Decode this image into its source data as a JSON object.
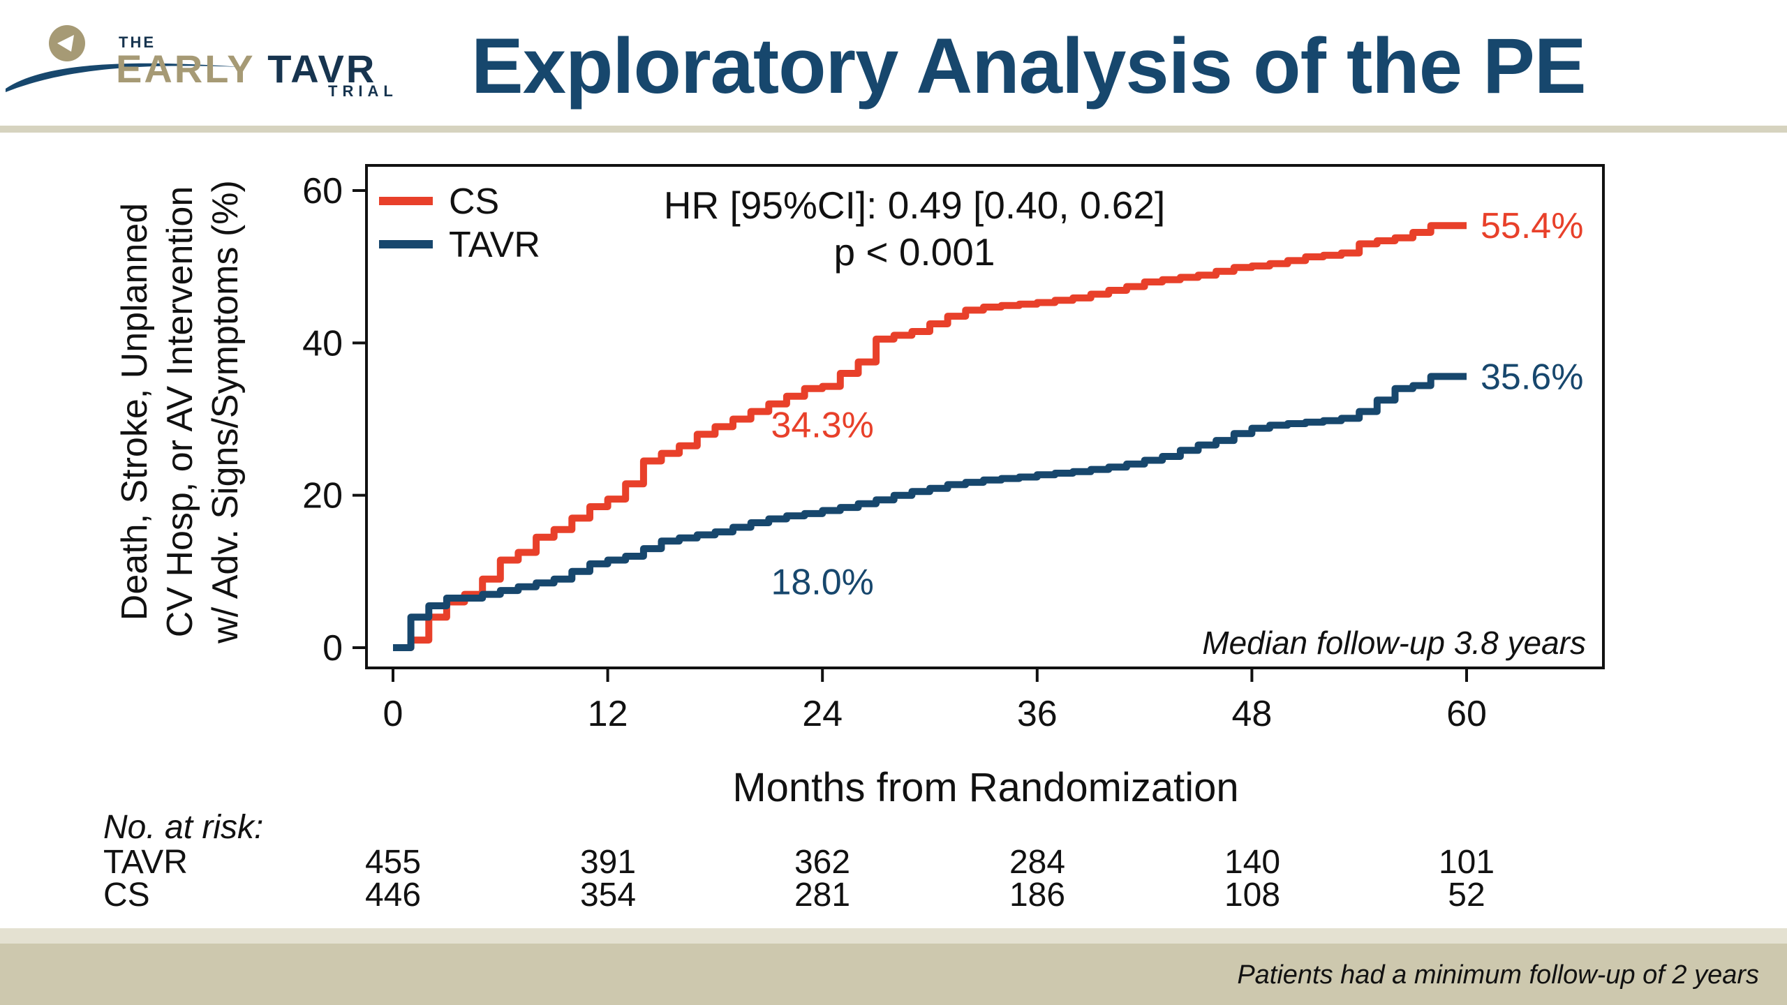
{
  "logo": {
    "the": "THE",
    "early": "EARLY",
    "tavr": "TAVR",
    "trial": "TRIAL"
  },
  "title": "Exploratory Analysis of the PE",
  "footnote": "Patients had a minimum follow-up of 2 years",
  "colors": {
    "cs": "#e8402a",
    "tavr": "#17476d",
    "title": "#17476d",
    "band": "#cdc8ae"
  },
  "chart_data": {
    "type": "line",
    "title": "",
    "xlabel": "Months from Randomization",
    "ylabel_lines": [
      "Death, Stroke, Unplanned",
      "CV Hosp, or AV Intervention",
      "w/ Adv. Signs/Symptoms (%)"
    ],
    "xlim": [
      0,
      60
    ],
    "ylim": [
      0,
      60
    ],
    "xticks": [
      0,
      12,
      24,
      36,
      48,
      60
    ],
    "yticks": [
      0,
      20,
      40,
      60
    ],
    "grid": false,
    "legend": {
      "placement": "top-left",
      "entries": [
        "CS",
        "TAVR"
      ]
    },
    "stats": [
      "HR [95%CI]: 0.49 [0.40, 0.62]",
      "p < 0.001"
    ],
    "median_note": "Median follow-up 3.8 years",
    "series": [
      {
        "name": "CS",
        "color": "#e8402a",
        "x": [
          0,
          1,
          2,
          3,
          4,
          5,
          6,
          7,
          8,
          9,
          10,
          11,
          12,
          13,
          14,
          15,
          16,
          17,
          18,
          19,
          20,
          21,
          22,
          23,
          24,
          25,
          26,
          27,
          28,
          29,
          30,
          31,
          32,
          33,
          34,
          35,
          36,
          37,
          38,
          39,
          40,
          41,
          42,
          43,
          44,
          45,
          46,
          47,
          48,
          49,
          50,
          51,
          52,
          53,
          54,
          55,
          56,
          57,
          58,
          59,
          60
        ],
        "y": [
          0,
          1,
          4,
          6,
          7,
          9,
          11.5,
          12.5,
          14.5,
          15.5,
          17,
          18.5,
          19.5,
          21.5,
          24.5,
          25.5,
          26.5,
          28,
          29,
          30,
          31,
          32,
          33,
          34,
          34.3,
          36,
          37.5,
          40.5,
          41,
          41.5,
          42.5,
          43.5,
          44.3,
          44.7,
          44.9,
          45.1,
          45.3,
          45.6,
          45.9,
          46.4,
          46.9,
          47.4,
          48,
          48.3,
          48.6,
          48.9,
          49.4,
          49.9,
          50.1,
          50.4,
          50.8,
          51.3,
          51.5,
          51.8,
          53,
          53.4,
          53.8,
          54.5,
          55.4,
          55.4,
          55.4
        ],
        "end_label": "55.4%"
      },
      {
        "name": "TAVR",
        "color": "#17476d",
        "x": [
          0,
          1,
          2,
          3,
          4,
          5,
          6,
          7,
          8,
          9,
          10,
          11,
          12,
          13,
          14,
          15,
          16,
          17,
          18,
          19,
          20,
          21,
          22,
          23,
          24,
          25,
          26,
          27,
          28,
          29,
          30,
          31,
          32,
          33,
          34,
          35,
          36,
          37,
          38,
          39,
          40,
          41,
          42,
          43,
          44,
          45,
          46,
          47,
          48,
          49,
          50,
          51,
          52,
          53,
          54,
          55,
          56,
          57,
          58,
          59,
          60
        ],
        "y": [
          0,
          4,
          5.5,
          6.5,
          6.5,
          7,
          7.5,
          8,
          8.5,
          9,
          10,
          11,
          11.5,
          12,
          13,
          14,
          14.4,
          14.8,
          15.2,
          15.8,
          16.4,
          16.9,
          17.3,
          17.6,
          18,
          18.4,
          18.9,
          19.4,
          20,
          20.5,
          20.9,
          21.4,
          21.7,
          22,
          22.2,
          22.4,
          22.7,
          22.9,
          23.1,
          23.4,
          23.7,
          24.1,
          24.6,
          25.1,
          25.9,
          26.6,
          27.2,
          28.1,
          28.8,
          29.2,
          29.4,
          29.6,
          29.8,
          30.1,
          31,
          32.5,
          34,
          34.4,
          35.6,
          35.6,
          35.6
        ],
        "end_label": "35.6%"
      }
    ],
    "annotations": [
      {
        "text": "34.3%",
        "series": "CS",
        "x": 24,
        "y": 34.3
      },
      {
        "text": "18.0%",
        "series": "TAVR",
        "x": 24,
        "y": 18.0
      }
    ],
    "at_risk": {
      "heading": "No. at risk:",
      "times": [
        0,
        12,
        24,
        36,
        48,
        60
      ],
      "rows": [
        {
          "label": "TAVR",
          "values": [
            "455",
            "391",
            "362",
            "284",
            "140",
            "101"
          ]
        },
        {
          "label": "CS",
          "values": [
            "446",
            "354",
            "281",
            "186",
            "108",
            "52"
          ]
        }
      ]
    }
  }
}
